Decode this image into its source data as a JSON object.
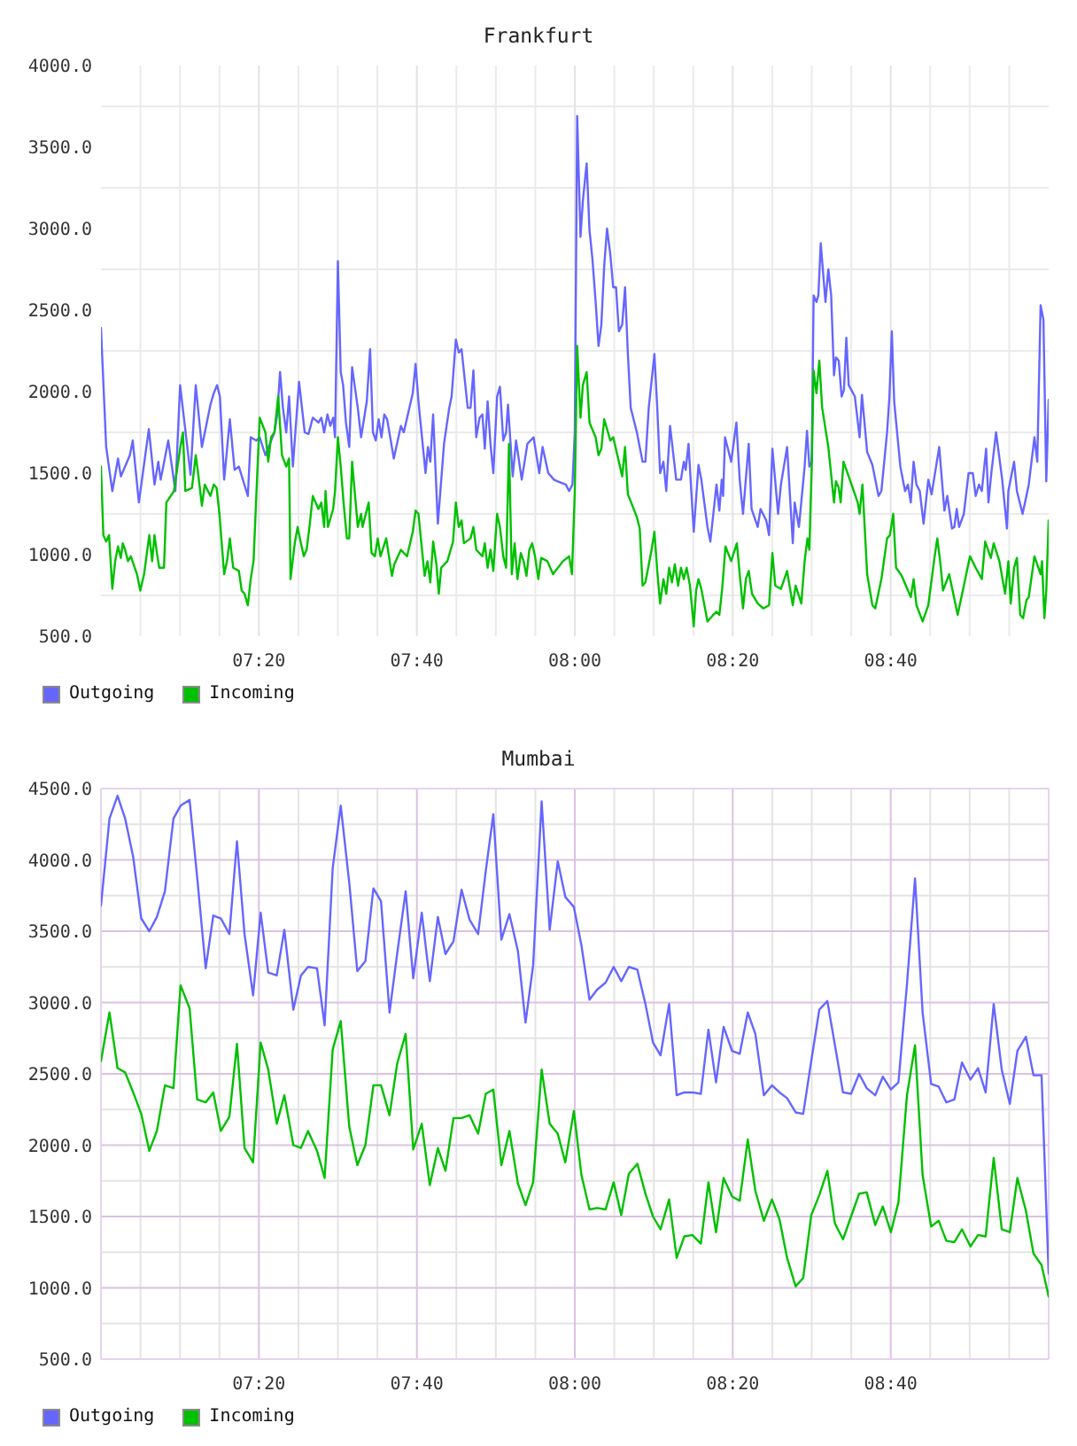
{
  "chart_data": [
    {
      "type": "line",
      "title": "Frankfurt",
      "series": [
        {
          "name": "Outgoing",
          "color": "#6666ff",
          "x": [
            7.0,
            7.011,
            7.024,
            7.036,
            7.042,
            7.061,
            7.067,
            7.08,
            7.101,
            7.113,
            7.121,
            7.126,
            7.142,
            7.157,
            7.167,
            7.189,
            7.2,
            7.213,
            7.231,
            7.238,
            7.245,
            7.251,
            7.26,
            7.272,
            7.282,
            7.291,
            7.31,
            7.316,
            7.328,
            7.335,
            7.347,
            7.366,
            7.372,
            7.378,
            7.384,
            7.391,
            7.397,
            7.405,
            7.418,
            7.43,
            7.438,
            7.447,
            7.459,
            7.465,
            7.471,
            7.478,
            7.484,
            7.49,
            7.494,
            7.5,
            7.506,
            7.511,
            7.517,
            7.524,
            7.53,
            7.542,
            7.549,
            7.555,
            7.561,
            7.568,
            7.574,
            7.58,
            7.586,
            7.592,
            7.598,
            7.604,
            7.618,
            7.633,
            7.639,
            7.658,
            7.664,
            7.67,
            7.685,
            7.69,
            7.695,
            7.701,
            7.711,
            7.724,
            7.735,
            7.74,
            7.749,
            7.755,
            7.761,
            7.774,
            7.78,
            7.786,
            7.792,
            7.799,
            7.805,
            7.81,
            7.816,
            7.822,
            7.828,
            7.836,
            7.842,
            7.849,
            7.855,
            7.859,
            7.869,
            7.876,
            7.888,
            7.9,
            7.913,
            7.925,
            7.932,
            7.944,
            7.956,
            7.963,
            7.981,
            7.988,
            7.995,
            8.0,
            8.005,
            8.012,
            8.017,
            8.025,
            8.031,
            8.037,
            8.044,
            8.05,
            8.056,
            8.062,
            8.068,
            8.075,
            8.081,
            8.087,
            8.093,
            8.1,
            8.106,
            8.112,
            8.118,
            8.131,
            8.143,
            8.149,
            8.156,
            8.168,
            8.174,
            8.18,
            8.187,
            8.193,
            8.201,
            8.214,
            8.224,
            8.23,
            8.234,
            8.24,
            8.245,
            8.251,
            8.261,
            8.267,
            8.28,
            8.286,
            8.299,
            8.305,
            8.31,
            8.313,
            8.317,
            8.33,
            8.341,
            8.348,
            8.355,
            8.367,
            8.373,
            8.386,
            8.392,
            8.404,
            8.41,
            8.417,
            8.429,
            8.435,
            8.448,
            8.46,
            8.464,
            8.473,
            8.485,
            8.49,
            8.495,
            8.5,
            8.504,
            8.51,
            8.514,
            8.519,
            8.529,
            8.535,
            8.541,
            8.547,
            8.551,
            8.557,
            8.563,
            8.568,
            8.573,
            8.578,
            8.591,
            8.601,
            8.606,
            8.617,
            8.628,
            8.641,
            8.647,
            8.659,
            8.664,
            8.669,
            8.674,
            8.687,
            8.697,
            8.703,
            8.709,
            8.715,
            8.721,
            8.728,
            8.736,
            8.746,
            8.753,
            8.769,
            8.78,
            8.786,
            8.796,
            8.801,
            8.806,
            8.811,
            8.821,
            8.831,
            8.84,
            8.846,
            8.853,
            8.859,
            8.868,
            8.873,
            8.879,
            8.889,
            8.902,
            8.912,
            8.915,
            8.927,
            8.933,
            8.945,
            8.958,
            8.97,
            8.976,
            8.983,
            8.989,
            8.995,
            9.0
          ],
          "values": [
            2390,
            1660,
            1390,
            1590,
            1480,
            1610,
            1700,
            1320,
            1770,
            1430,
            1570,
            1460,
            1700,
            1390,
            2040,
            1490,
            2040,
            1660,
            1920,
            1990,
            2040,
            1970,
            1460,
            1830,
            1520,
            1540,
            1360,
            1720,
            1700,
            1720,
            1610,
            1750,
            1860,
            2120,
            1900,
            1750,
            1970,
            1540,
            2060,
            1750,
            1740,
            1840,
            1810,
            1840,
            1750,
            1860,
            1790,
            1840,
            1720,
            2800,
            2120,
            2040,
            1810,
            1660,
            2150,
            1900,
            1720,
            1830,
            1940,
            2260,
            1750,
            1700,
            1830,
            1720,
            1860,
            1830,
            1590,
            1790,
            1750,
            1990,
            2170,
            1940,
            1500,
            1660,
            1570,
            1860,
            1190,
            1680,
            1900,
            1970,
            2320,
            2240,
            2260,
            1900,
            1900,
            2130,
            1720,
            1840,
            1860,
            1650,
            1940,
            1680,
            1500,
            1970,
            2030,
            1700,
            1750,
            1920,
            1480,
            1700,
            1460,
            1680,
            1720,
            1500,
            1660,
            1500,
            1460,
            1450,
            1430,
            1390,
            1430,
            1750,
            3690,
            2950,
            3170,
            3400,
            2990,
            2820,
            2550,
            2280,
            2410,
            2770,
            3000,
            2840,
            2640,
            2640,
            2370,
            2410,
            2640,
            2230,
            1900,
            1750,
            1570,
            1570,
            1900,
            2230,
            1900,
            1500,
            1570,
            1390,
            1790,
            1460,
            1460,
            1570,
            1520,
            1680,
            1430,
            1140,
            1550,
            1460,
            1170,
            1080,
            1430,
            1270,
            1460,
            1360,
            1720,
            1570,
            1810,
            1460,
            1250,
            1680,
            1280,
            1170,
            1280,
            1210,
            1120,
            1650,
            1250,
            1430,
            1660,
            1070,
            1320,
            1170,
            1540,
            1760,
            1540,
            1570,
            2590,
            2550,
            2590,
            2910,
            2550,
            2750,
            2590,
            2100,
            2210,
            2190,
            1970,
            2010,
            2330,
            2040,
            1970,
            1720,
            1980,
            1630,
            1550,
            1360,
            1390,
            1750,
            1970,
            2370,
            1940,
            1540,
            1390,
            1430,
            1320,
            1570,
            1430,
            1390,
            1190,
            1460,
            1370,
            1660,
            1270,
            1360,
            1160,
            1170,
            1280,
            1170,
            1250,
            1500,
            1500,
            1360,
            1430,
            1390,
            1650,
            1320,
            1500,
            1750,
            1460,
            1160,
            1390,
            1570,
            1390,
            1250,
            1430,
            1720,
            1570,
            2530,
            2440,
            1450,
            1950
          ]
        },
        {
          "name": "Incoming",
          "color": "#00c000",
          "x": [
            7.0,
            7.005,
            7.011,
            7.017,
            7.024,
            7.03,
            7.036,
            7.042,
            7.046,
            7.051,
            7.057,
            7.063,
            7.076,
            7.083,
            7.091,
            7.102,
            7.108,
            7.113,
            7.118,
            7.123,
            7.133,
            7.138,
            7.154,
            7.167,
            7.173,
            7.178,
            7.192,
            7.2,
            7.205,
            7.213,
            7.219,
            7.231,
            7.238,
            7.244,
            7.25,
            7.26,
            7.266,
            7.272,
            7.279,
            7.291,
            7.297,
            7.303,
            7.31,
            7.316,
            7.322,
            7.328,
            7.335,
            7.347,
            7.353,
            7.359,
            7.366,
            7.374,
            7.382,
            7.391,
            7.397,
            7.4,
            7.409,
            7.415,
            7.422,
            7.428,
            7.434,
            7.44,
            7.447,
            7.459,
            7.465,
            7.471,
            7.474,
            7.479,
            7.49,
            7.494,
            7.5,
            7.506,
            7.512,
            7.519,
            7.524,
            7.53,
            7.542,
            7.549,
            7.552,
            7.565,
            7.571,
            7.578,
            7.584,
            7.59,
            7.602,
            7.614,
            7.619,
            7.633,
            7.646,
            7.658,
            7.664,
            7.67,
            7.683,
            7.689,
            7.695,
            7.701,
            7.708,
            7.713,
            7.718,
            7.731,
            7.743,
            7.749,
            7.755,
            7.761,
            7.766,
            7.78,
            7.786,
            7.792,
            7.805,
            7.81,
            7.816,
            7.822,
            7.828,
            7.836,
            7.842,
            7.849,
            7.855,
            7.861,
            7.867,
            7.873,
            7.879,
            7.886,
            7.892,
            7.898,
            7.904,
            7.91,
            7.916,
            7.923,
            7.929,
            7.942,
            7.954,
            7.975,
            7.988,
            7.994,
            8.0,
            8.005,
            8.012,
            8.017,
            8.025,
            8.031,
            8.044,
            8.05,
            8.056,
            8.062,
            8.075,
            8.081,
            8.093,
            8.1,
            8.106,
            8.112,
            8.131,
            8.137,
            8.143,
            8.149,
            8.162,
            8.168,
            8.174,
            8.18,
            8.187,
            8.193,
            8.199,
            8.205,
            8.211,
            8.218,
            8.224,
            8.23,
            8.236,
            8.243,
            8.251,
            8.256,
            8.261,
            8.267,
            8.28,
            8.292,
            8.299,
            8.305,
            8.311,
            8.318,
            8.33,
            8.342,
            8.348,
            8.355,
            8.361,
            8.367,
            8.374,
            8.386,
            8.398,
            8.41,
            8.417,
            8.423,
            8.435,
            8.448,
            8.46,
            8.466,
            8.478,
            8.485,
            8.491,
            8.495,
            8.5,
            8.504,
            8.51,
            8.516,
            8.522,
            8.535,
            8.547,
            8.551,
            8.557,
            8.561,
            8.567,
            8.578,
            8.597,
            8.601,
            8.607,
            8.617,
            8.628,
            8.634,
            8.647,
            8.659,
            8.665,
            8.672,
            8.678,
            8.69,
            8.709,
            8.715,
            8.721,
            8.734,
            8.746,
            8.759,
            8.765,
            8.771,
            8.777,
            8.79,
            8.808,
            8.821,
            8.834,
            8.846,
            8.859,
            8.866,
            8.878,
            8.884,
            8.896,
            8.908,
            8.915,
            8.92,
            8.927,
            8.933,
            8.94,
            8.946,
            8.953,
            8.958,
            8.97,
            8.983,
            8.986,
            8.991,
            8.995,
            9.0
          ],
          "values": [
            1540,
            1120,
            1080,
            1120,
            790,
            960,
            1050,
            980,
            1070,
            1030,
            960,
            990,
            880,
            780,
            880,
            1120,
            960,
            1120,
            1010,
            920,
            920,
            1320,
            1390,
            1650,
            1750,
            1390,
            1410,
            1610,
            1500,
            1300,
            1430,
            1360,
            1430,
            1410,
            1250,
            880,
            960,
            1100,
            920,
            900,
            780,
            760,
            690,
            850,
            960,
            1370,
            1840,
            1750,
            1570,
            1720,
            1750,
            1970,
            1610,
            1540,
            1590,
            850,
            1070,
            1170,
            1070,
            990,
            1030,
            1170,
            1360,
            1280,
            1320,
            1170,
            1390,
            1170,
            1280,
            1390,
            1720,
            1540,
            1320,
            1100,
            1100,
            1570,
            1170,
            1250,
            1170,
            1320,
            1010,
            990,
            1100,
            990,
            1100,
            870,
            940,
            1030,
            990,
            1140,
            1270,
            1250,
            870,
            960,
            830,
            1080,
            940,
            760,
            920,
            960,
            1080,
            1320,
            1170,
            1210,
            1070,
            1100,
            1170,
            1030,
            990,
            1070,
            920,
            1030,
            900,
            1250,
            1170,
            990,
            920,
            1680,
            880,
            1070,
            850,
            1010,
            960,
            870,
            1030,
            1070,
            990,
            850,
            980,
            960,
            880,
            960,
            990,
            880,
            1390,
            2280,
            1840,
            2040,
            2120,
            1810,
            1720,
            1610,
            1650,
            1830,
            1700,
            1720,
            1570,
            1480,
            1660,
            1370,
            1230,
            1160,
            810,
            830,
            1030,
            1140,
            900,
            700,
            850,
            760,
            920,
            830,
            940,
            810,
            920,
            850,
            920,
            810,
            560,
            780,
            850,
            790,
            590,
            630,
            650,
            630,
            790,
            1050,
            960,
            1070,
            880,
            670,
            850,
            900,
            760,
            700,
            670,
            690,
            1010,
            810,
            790,
            900,
            690,
            810,
            700,
            960,
            1100,
            1030,
            1540,
            2130,
            1990,
            2190,
            1900,
            1660,
            1320,
            1450,
            1410,
            1320,
            1570,
            1480,
            1320,
            1250,
            1430,
            880,
            690,
            670,
            850,
            1100,
            1120,
            1250,
            920,
            870,
            740,
            850,
            690,
            590,
            690,
            980,
            1100,
            960,
            780,
            880,
            630,
            810,
            990,
            920,
            850,
            1080,
            980,
            1070,
            960,
            760,
            960,
            700,
            920,
            980,
            630,
            610,
            720,
            740,
            990,
            880,
            960,
            610,
            780,
            1210
          ]
        }
      ],
      "xlim": [
        7,
        9
      ],
      "xticks": [
        {
          "value": 7.0833,
          "label": null
        },
        {
          "value": 7.1667,
          "label": null
        },
        {
          "value": 7.25,
          "label": null
        },
        {
          "value": 7.3333,
          "label": "07:20"
        },
        {
          "value": 7.4167,
          "label": null
        },
        {
          "value": 7.5,
          "label": null
        },
        {
          "value": 7.5833,
          "label": null
        },
        {
          "value": 7.6667,
          "label": "07:40"
        },
        {
          "value": 7.75,
          "label": null
        },
        {
          "value": 7.8333,
          "label": null
        },
        {
          "value": 7.9167,
          "label": null
        },
        {
          "value": 8,
          "label": "08:00"
        },
        {
          "value": 8.0833,
          "label": null
        },
        {
          "value": 8.1667,
          "label": null
        },
        {
          "value": 8.25,
          "label": null
        },
        {
          "value": 8.3333,
          "label": "08:20"
        },
        {
          "value": 8.4167,
          "label": null
        },
        {
          "value": 8.5,
          "label": null
        },
        {
          "value": 8.5833,
          "label": null
        },
        {
          "value": 8.6667,
          "label": "08:40"
        },
        {
          "value": 8.75,
          "label": null
        },
        {
          "value": 8.8333,
          "label": null
        },
        {
          "value": 8.9167,
          "label": null
        }
      ],
      "ylim": [
        500,
        4000
      ],
      "yticks": [
        {
          "value": 500,
          "label": "500.0"
        },
        {
          "value": 750,
          "label": null
        },
        {
          "value": 1000,
          "label": "1000.0"
        },
        {
          "value": 1250,
          "label": null
        },
        {
          "value": 1500,
          "label": "1500.0"
        },
        {
          "value": 1750,
          "label": null
        },
        {
          "value": 2000,
          "label": "2000.0"
        },
        {
          "value": 2250,
          "label": null
        },
        {
          "value": 2500,
          "label": "2500.0"
        },
        {
          "value": 2750,
          "label": null
        },
        {
          "value": 3000,
          "label": "3000.0"
        },
        {
          "value": 3250,
          "label": null
        },
        {
          "value": 3500,
          "label": "3500.0"
        },
        {
          "value": 3750,
          "label": null
        },
        {
          "value": 4000,
          "label": "4000.0"
        }
      ],
      "grid": true,
      "legend": "bottom left"
    },
    {
      "type": "line",
      "title": "Mumbai",
      "x": [
        7.0,
        7.018,
        7.035,
        7.051,
        7.068,
        7.085,
        7.102,
        7.118,
        7.135,
        7.153,
        7.168,
        7.187,
        7.203,
        7.221,
        7.237,
        7.253,
        7.271,
        7.287,
        7.303,
        7.321,
        7.337,
        7.353,
        7.371,
        7.387,
        7.406,
        7.422,
        7.437,
        7.456,
        7.472,
        7.489,
        7.506,
        7.524,
        7.541,
        7.558,
        7.575,
        7.591,
        7.609,
        7.625,
        7.643,
        7.659,
        7.677,
        7.694,
        7.711,
        7.727,
        7.744,
        7.761,
        7.778,
        7.796,
        7.812,
        7.828,
        7.845,
        7.862,
        7.88,
        7.896,
        7.912,
        7.93,
        7.947,
        7.964,
        7.98,
        7.998,
        8.014,
        8.031,
        8.047,
        8.065,
        8.082,
        8.098,
        8.114,
        8.132,
        8.149,
        8.165,
        8.181,
        8.199,
        8.215,
        8.231,
        8.248,
        8.266,
        8.282,
        8.298,
        8.314,
        8.332,
        8.348,
        8.365,
        8.381,
        8.399,
        8.416,
        8.432,
        8.448,
        8.466,
        8.482,
        8.499,
        8.516,
        8.533,
        8.549,
        8.566,
        8.583,
        8.6,
        8.616,
        8.634,
        8.65,
        8.667,
        8.683,
        8.701,
        8.718,
        8.734,
        8.752,
        8.768,
        8.784,
        8.801,
        8.817,
        8.835,
        8.851,
        8.867,
        8.884,
        8.901,
        8.918,
        8.934,
        8.952,
        8.968,
        8.985,
        9.0
      ],
      "series": [
        {
          "name": "Outgoing",
          "color": "#6666ff",
          "values": [
            3680,
            4290,
            4450,
            4290,
            4020,
            3590,
            3500,
            3600,
            3780,
            4290,
            4380,
            4420,
            3880,
            3240,
            3610,
            3590,
            3480,
            4130,
            3480,
            3050,
            3630,
            3210,
            3190,
            3510,
            2950,
            3190,
            3250,
            3240,
            2840,
            3940,
            4380,
            3840,
            3220,
            3290,
            3800,
            3710,
            2930,
            3340,
            3780,
            3170,
            3630,
            3150,
            3600,
            3340,
            3430,
            3790,
            3580,
            3480,
            3920,
            4320,
            3440,
            3620,
            3360,
            2860,
            3260,
            4410,
            3510,
            3990,
            3740,
            3670,
            3400,
            3020,
            3090,
            3140,
            3250,
            3150,
            3250,
            3230,
            2990,
            2720,
            2630,
            2990,
            2350,
            2370,
            2370,
            2360,
            2810,
            2440,
            2830,
            2660,
            2640,
            2930,
            2780,
            2350,
            2420,
            2370,
            2330,
            2230,
            2220,
            2590,
            2950,
            3010,
            2700,
            2370,
            2360,
            2500,
            2400,
            2350,
            2480,
            2390,
            2440,
            3130,
            3870,
            2930,
            2430,
            2410,
            2300,
            2320,
            2580,
            2460,
            2540,
            2370,
            2990,
            2530,
            2290,
            2660,
            2760,
            2490,
            2490,
            1100
          ]
        },
        {
          "name": "Incoming",
          "color": "#00c000",
          "values": [
            2590,
            2930,
            2540,
            2510,
            2370,
            2220,
            1960,
            2100,
            2420,
            2400,
            3120,
            2960,
            2320,
            2300,
            2370,
            2100,
            2200,
            2710,
            1980,
            1880,
            2720,
            2530,
            2150,
            2350,
            2000,
            1980,
            2100,
            1960,
            1770,
            2670,
            2870,
            2130,
            1860,
            2000,
            2420,
            2420,
            2210,
            2570,
            2780,
            1970,
            2150,
            1720,
            1980,
            1820,
            2190,
            2190,
            2210,
            2080,
            2360,
            2390,
            1860,
            2100,
            1730,
            1580,
            1740,
            2530,
            2150,
            2080,
            1880,
            2240,
            1790,
            1550,
            1560,
            1550,
            1740,
            1510,
            1800,
            1870,
            1660,
            1500,
            1410,
            1620,
            1210,
            1360,
            1370,
            1310,
            1740,
            1390,
            1770,
            1640,
            1610,
            2040,
            1680,
            1470,
            1620,
            1480,
            1210,
            1010,
            1070,
            1510,
            1650,
            1820,
            1450,
            1340,
            1500,
            1660,
            1670,
            1440,
            1570,
            1390,
            1600,
            2350,
            2700,
            1790,
            1430,
            1470,
            1330,
            1320,
            1410,
            1290,
            1370,
            1360,
            1910,
            1410,
            1390,
            1770,
            1540,
            1240,
            1160,
            940
          ]
        }
      ],
      "xlim": [
        7,
        9
      ],
      "xticks": [
        {
          "value": 7.0833,
          "label": null
        },
        {
          "value": 7.1667,
          "label": null
        },
        {
          "value": 7.25,
          "label": null
        },
        {
          "value": 7.3333,
          "label": "07:20"
        },
        {
          "value": 7.4167,
          "label": null
        },
        {
          "value": 7.5,
          "label": null
        },
        {
          "value": 7.5833,
          "label": null
        },
        {
          "value": 7.6667,
          "label": "07:40"
        },
        {
          "value": 7.75,
          "label": null
        },
        {
          "value": 7.8333,
          "label": null
        },
        {
          "value": 7.9167,
          "label": null
        },
        {
          "value": 8,
          "label": "08:00"
        },
        {
          "value": 8.0833,
          "label": null
        },
        {
          "value": 8.1667,
          "label": null
        },
        {
          "value": 8.25,
          "label": null
        },
        {
          "value": 8.3333,
          "label": "08:20"
        },
        {
          "value": 8.4167,
          "label": null
        },
        {
          "value": 8.5,
          "label": null
        },
        {
          "value": 8.5833,
          "label": null
        },
        {
          "value": 8.6667,
          "label": "08:40"
        },
        {
          "value": 8.75,
          "label": null
        },
        {
          "value": 8.8333,
          "label": null
        },
        {
          "value": 8.9167,
          "label": null
        }
      ],
      "ylim": [
        500,
        4500
      ],
      "yticks": [
        {
          "value": 500,
          "label": "500.0"
        },
        {
          "value": 750,
          "label": null
        },
        {
          "value": 1000,
          "label": "1000.0"
        },
        {
          "value": 1250,
          "label": null
        },
        {
          "value": 1500,
          "label": "1500.0"
        },
        {
          "value": 1750,
          "label": null
        },
        {
          "value": 2000,
          "label": "2000.0"
        },
        {
          "value": 2250,
          "label": null
        },
        {
          "value": 2500,
          "label": "2500.0"
        },
        {
          "value": 2750,
          "label": null
        },
        {
          "value": 3000,
          "label": "3000.0"
        },
        {
          "value": 3250,
          "label": null
        },
        {
          "value": 3500,
          "label": "3500.0"
        },
        {
          "value": 3750,
          "label": null
        },
        {
          "value": 4000,
          "label": "4000.0"
        },
        {
          "value": 4250,
          "label": null
        },
        {
          "value": 4500,
          "label": "4500.0"
        }
      ],
      "grid": true,
      "legend": "bottom left"
    }
  ]
}
